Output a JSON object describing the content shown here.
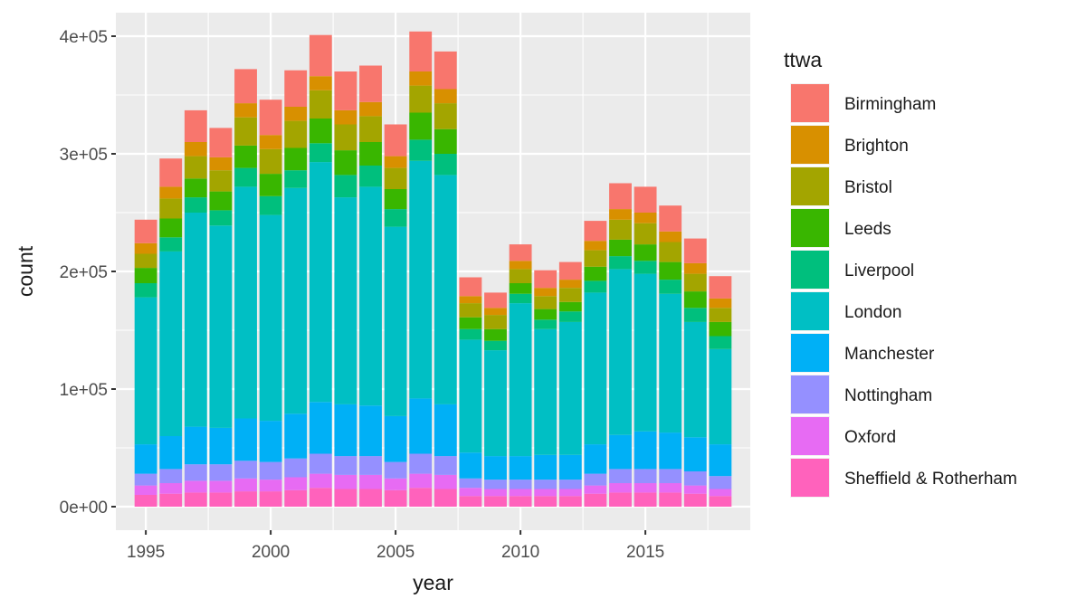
{
  "chart_data": {
    "type": "bar",
    "stacked": true,
    "xlabel": "year",
    "ylabel": "count",
    "legend_title": "ttwa",
    "legend_position": "right",
    "grid": true,
    "x": [
      1995,
      1996,
      1997,
      1998,
      1999,
      2000,
      2001,
      2002,
      2003,
      2004,
      2005,
      2006,
      2007,
      2008,
      2009,
      2010,
      2011,
      2012,
      2013,
      2014,
      2015,
      2016,
      2017,
      2018
    ],
    "xlim": [
      1993.8,
      2019.2
    ],
    "ylim": [
      -20000,
      420000
    ],
    "x_ticks": [
      1995,
      2000,
      2005,
      2010,
      2015
    ],
    "x_tick_labels": [
      "1995",
      "2000",
      "2005",
      "2010",
      "2015"
    ],
    "y_ticks": [
      0,
      100000,
      200000,
      300000,
      400000
    ],
    "y_tick_labels": [
      "0e+00",
      "1e+05",
      "2e+05",
      "3e+05",
      "4e+05"
    ],
    "series": [
      {
        "name": "Birmingham",
        "color": "#F8766D",
        "values": [
          20000,
          24000,
          27000,
          25000,
          29000,
          30000,
          31000,
          35000,
          33000,
          31000,
          27000,
          34000,
          32000,
          16000,
          13000,
          14000,
          15000,
          15000,
          17000,
          22000,
          22000,
          22000,
          21000,
          19000
        ]
      },
      {
        "name": "Brighton",
        "color": "#D89000",
        "values": [
          9000,
          10000,
          12000,
          11000,
          12000,
          12000,
          12000,
          12000,
          12000,
          12000,
          10000,
          12000,
          12000,
          6000,
          6000,
          7000,
          7000,
          7000,
          8000,
          9000,
          9000,
          9000,
          9000,
          8000
        ]
      },
      {
        "name": "Bristol",
        "color": "#A3A500",
        "values": [
          12000,
          17000,
          19000,
          18000,
          24000,
          21000,
          23000,
          24000,
          22000,
          22000,
          18000,
          23000,
          22000,
          12000,
          12000,
          12000,
          11000,
          12000,
          14000,
          17000,
          18000,
          17000,
          15000,
          12000
        ]
      },
      {
        "name": "Leeds",
        "color": "#39B600",
        "values": [
          13000,
          16000,
          16000,
          16000,
          19000,
          19000,
          19000,
          21000,
          21000,
          20000,
          17000,
          23000,
          21000,
          10000,
          10000,
          9000,
          9000,
          8000,
          12000,
          14000,
          14000,
          15000,
          14000,
          12000
        ]
      },
      {
        "name": "Liverpool",
        "color": "#00BF7D",
        "values": [
          12000,
          12000,
          13000,
          13000,
          16000,
          16000,
          15000,
          16000,
          19000,
          18000,
          15000,
          18000,
          18000,
          9000,
          8000,
          8000,
          8000,
          9000,
          10000,
          11000,
          11000,
          12000,
          12000,
          11000
        ]
      },
      {
        "name": "London",
        "color": "#00BFC4",
        "values": [
          125000,
          157000,
          182000,
          172000,
          197000,
          175000,
          192000,
          204000,
          176000,
          186000,
          161000,
          202000,
          195000,
          96000,
          90000,
          130000,
          107000,
          113000,
          129000,
          141000,
          134000,
          118000,
          98000,
          81000
        ]
      },
      {
        "name": "Manchester",
        "color": "#00B0F6",
        "values": [
          25000,
          28000,
          32000,
          31000,
          36000,
          35000,
          38000,
          44000,
          44000,
          43000,
          39000,
          47000,
          44000,
          22000,
          20000,
          20000,
          21000,
          21000,
          25000,
          29000,
          32000,
          31000,
          29000,
          27000
        ]
      },
      {
        "name": "Nottingham",
        "color": "#9590FF",
        "values": [
          10000,
          12000,
          14000,
          14000,
          15000,
          15000,
          16000,
          17000,
          16000,
          16000,
          14000,
          17000,
          16000,
          8000,
          8000,
          8000,
          8000,
          8000,
          10000,
          12000,
          12000,
          12000,
          12000,
          11000
        ]
      },
      {
        "name": "Oxford",
        "color": "#E76BF3",
        "values": [
          8000,
          9000,
          10000,
          10000,
          11000,
          10000,
          11000,
          12000,
          12000,
          12000,
          10000,
          12000,
          12000,
          7000,
          6000,
          6000,
          6000,
          6000,
          7000,
          8000,
          8000,
          8000,
          7000,
          6000
        ]
      },
      {
        "name": "Sheffield & Rotherham",
        "color": "#FF62BC",
        "values": [
          10000,
          11000,
          12000,
          12000,
          13000,
          13000,
          14000,
          16000,
          15000,
          15000,
          14000,
          16000,
          15000,
          9000,
          9000,
          9000,
          9000,
          9000,
          11000,
          12000,
          12000,
          12000,
          11000,
          9000
        ]
      }
    ]
  }
}
